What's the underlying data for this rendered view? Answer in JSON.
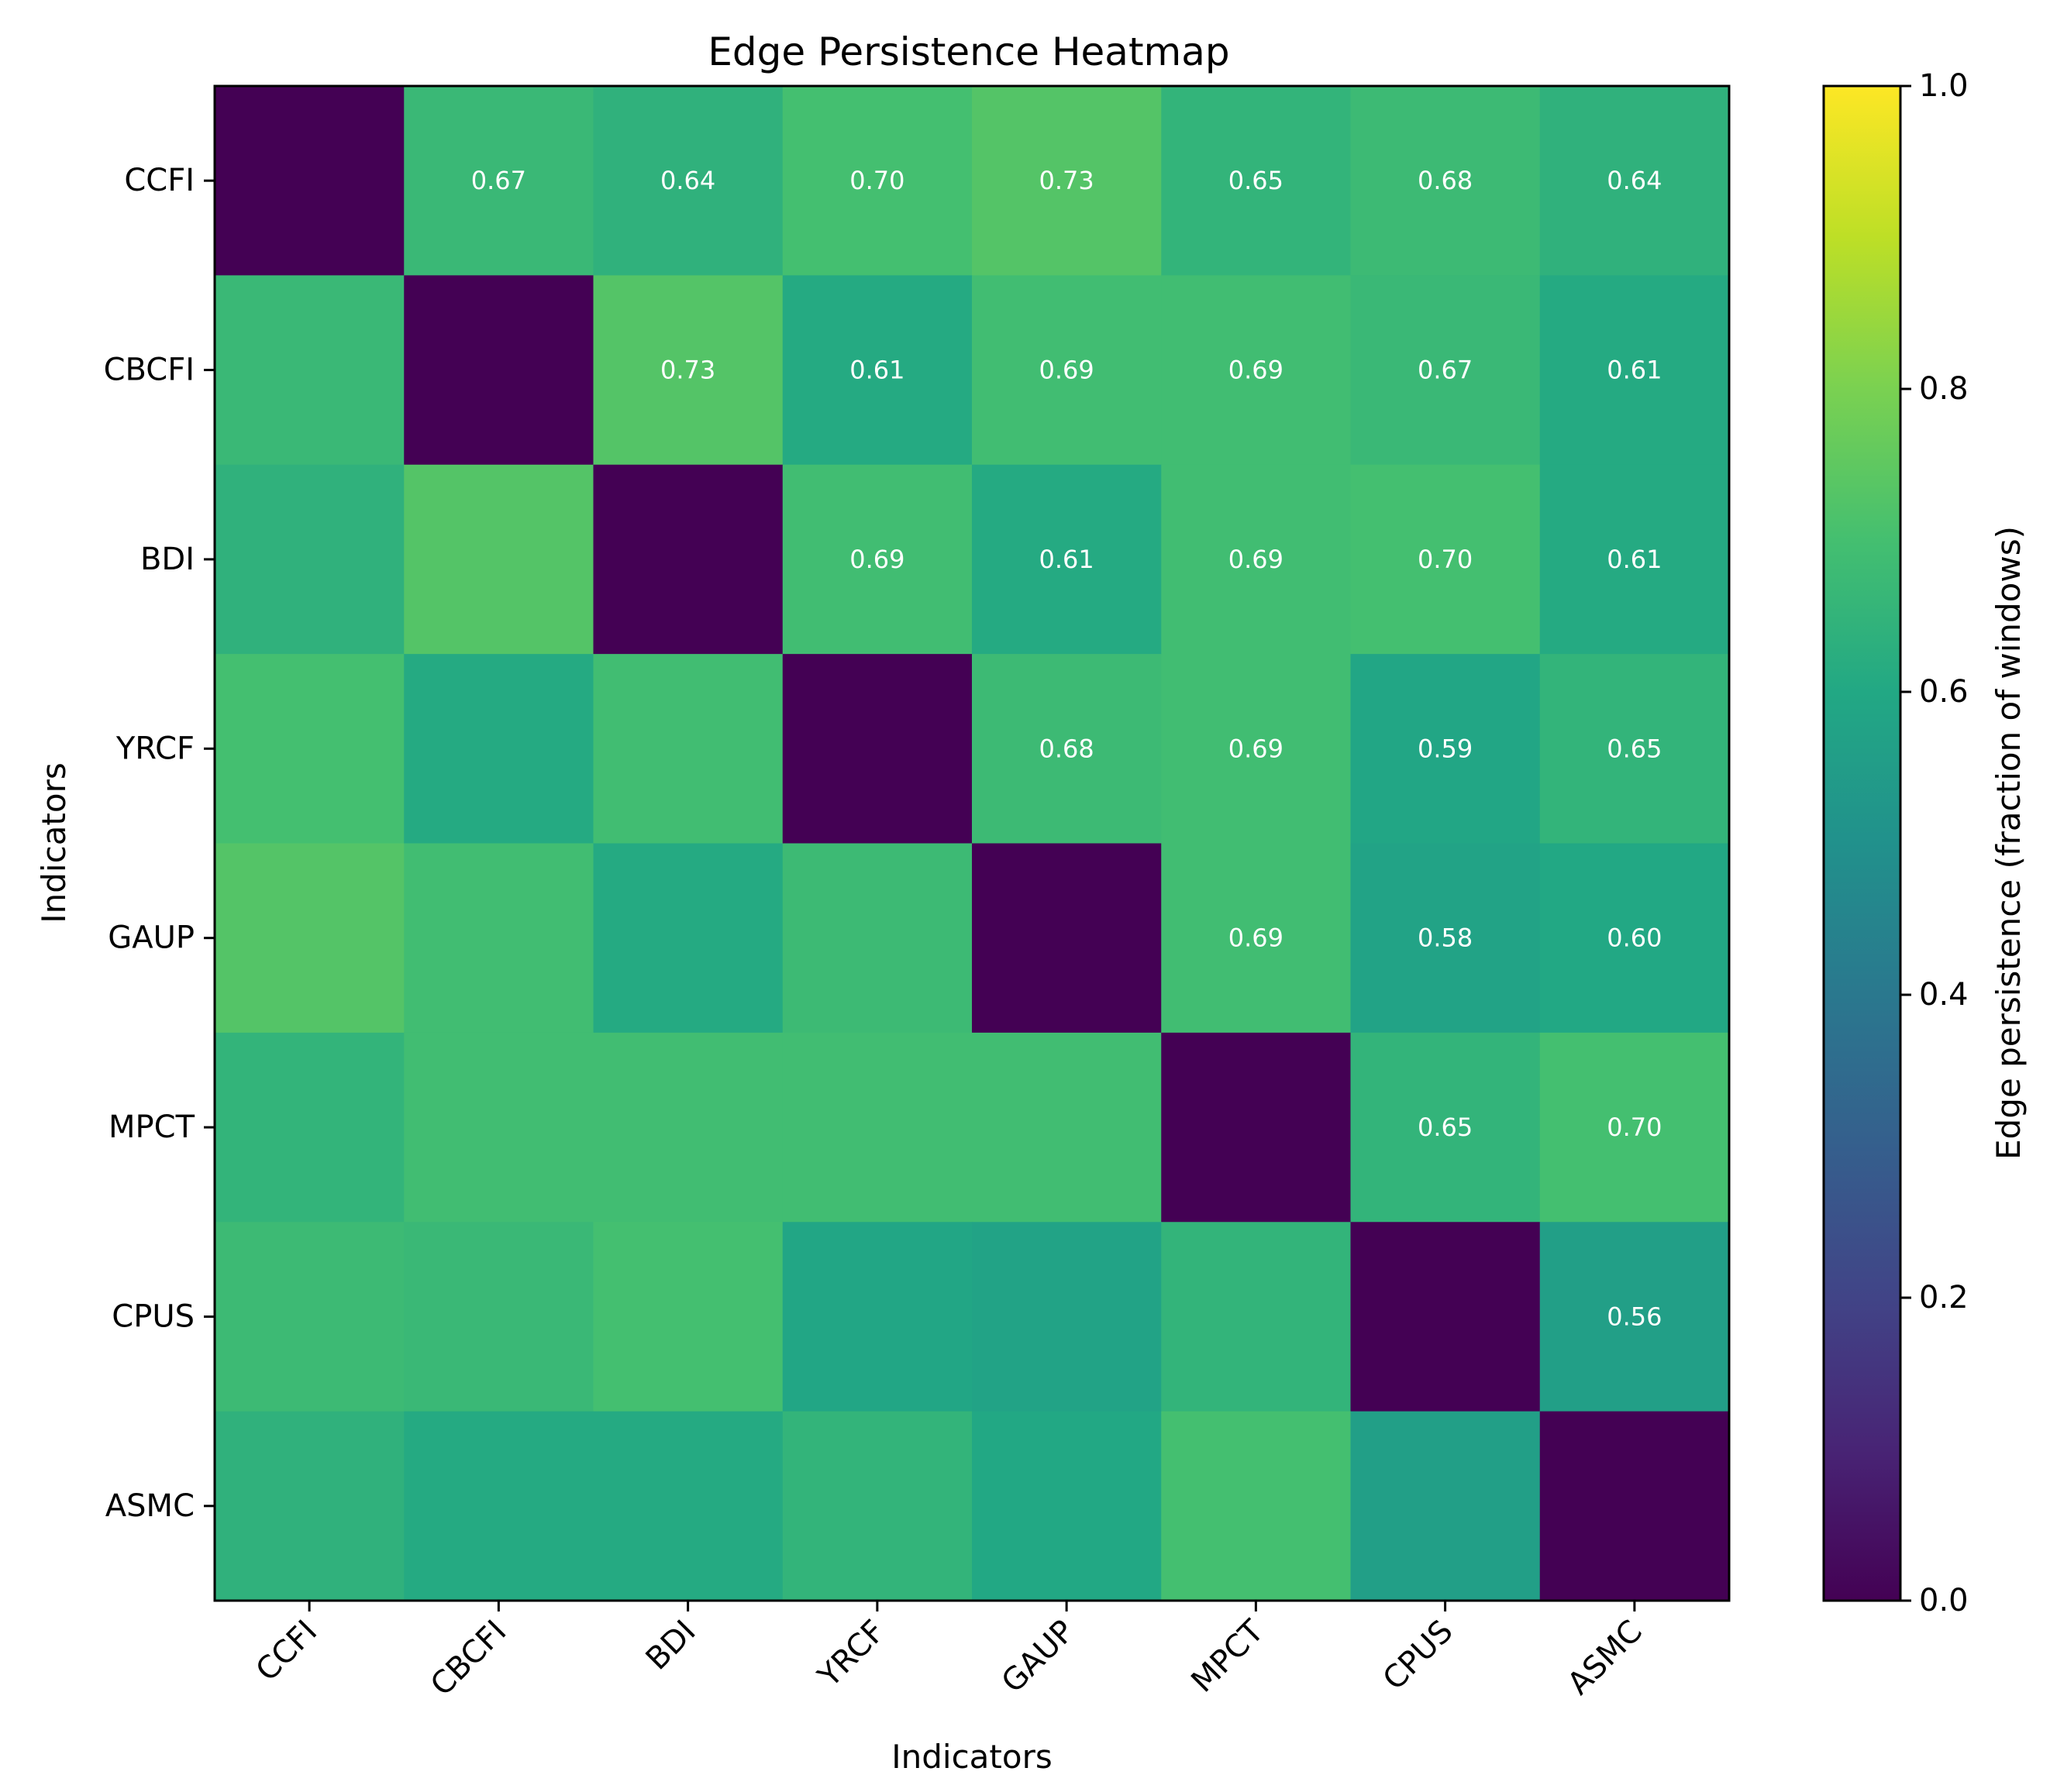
{
  "chart_data": {
    "type": "heatmap",
    "title": "Edge Persistence Heatmap",
    "xlabel": "Indicators",
    "ylabel": "Indicators",
    "x_categories": [
      "CCFI",
      "CBCFI",
      "BDI",
      "YRCF",
      "GAUP",
      "MPCT",
      "CPUS",
      "ASMC"
    ],
    "y_categories": [
      "CCFI",
      "CBCFI",
      "BDI",
      "YRCF",
      "GAUP",
      "MPCT",
      "CPUS",
      "ASMC"
    ],
    "values": [
      [
        0.0,
        0.67,
        0.64,
        0.7,
        0.73,
        0.65,
        0.68,
        0.64
      ],
      [
        0.67,
        0.0,
        0.73,
        0.61,
        0.69,
        0.69,
        0.67,
        0.61
      ],
      [
        0.64,
        0.73,
        0.0,
        0.69,
        0.61,
        0.69,
        0.7,
        0.61
      ],
      [
        0.7,
        0.61,
        0.69,
        0.0,
        0.68,
        0.69,
        0.59,
        0.65
      ],
      [
        0.73,
        0.69,
        0.61,
        0.68,
        0.0,
        0.69,
        0.58,
        0.6
      ],
      [
        0.65,
        0.69,
        0.69,
        0.69,
        0.69,
        0.0,
        0.65,
        0.7
      ],
      [
        0.68,
        0.67,
        0.7,
        0.59,
        0.58,
        0.65,
        0.0,
        0.56
      ],
      [
        0.64,
        0.61,
        0.61,
        0.65,
        0.6,
        0.7,
        0.56,
        0.0
      ]
    ],
    "annotations": [
      {
        "row": 0,
        "col": 1,
        "text": "0.67"
      },
      {
        "row": 0,
        "col": 2,
        "text": "0.64"
      },
      {
        "row": 0,
        "col": 3,
        "text": "0.70"
      },
      {
        "row": 0,
        "col": 4,
        "text": "0.73"
      },
      {
        "row": 0,
        "col": 5,
        "text": "0.65"
      },
      {
        "row": 0,
        "col": 6,
        "text": "0.68"
      },
      {
        "row": 0,
        "col": 7,
        "text": "0.64"
      },
      {
        "row": 1,
        "col": 2,
        "text": "0.73"
      },
      {
        "row": 1,
        "col": 3,
        "text": "0.61"
      },
      {
        "row": 1,
        "col": 4,
        "text": "0.69"
      },
      {
        "row": 1,
        "col": 5,
        "text": "0.69"
      },
      {
        "row": 1,
        "col": 6,
        "text": "0.67"
      },
      {
        "row": 1,
        "col": 7,
        "text": "0.61"
      },
      {
        "row": 2,
        "col": 3,
        "text": "0.69"
      },
      {
        "row": 2,
        "col": 4,
        "text": "0.61"
      },
      {
        "row": 2,
        "col": 5,
        "text": "0.69"
      },
      {
        "row": 2,
        "col": 6,
        "text": "0.70"
      },
      {
        "row": 2,
        "col": 7,
        "text": "0.61"
      },
      {
        "row": 3,
        "col": 4,
        "text": "0.68"
      },
      {
        "row": 3,
        "col": 5,
        "text": "0.69"
      },
      {
        "row": 3,
        "col": 6,
        "text": "0.59"
      },
      {
        "row": 3,
        "col": 7,
        "text": "0.65"
      },
      {
        "row": 4,
        "col": 5,
        "text": "0.69"
      },
      {
        "row": 4,
        "col": 6,
        "text": "0.58"
      },
      {
        "row": 4,
        "col": 7,
        "text": "0.60"
      },
      {
        "row": 5,
        "col": 6,
        "text": "0.65"
      },
      {
        "row": 5,
        "col": 7,
        "text": "0.70"
      },
      {
        "row": 6,
        "col": 7,
        "text": "0.56"
      }
    ],
    "colorbar": {
      "label": "Edge persistence (fraction of windows)",
      "range": [
        0.0,
        1.0
      ],
      "ticks": [
        0.0,
        0.2,
        0.4,
        0.6,
        0.8,
        1.0
      ],
      "tick_labels": [
        "0.0",
        "0.2",
        "0.4",
        "0.6",
        "0.8",
        "1.0"
      ],
      "colormap": "viridis"
    },
    "annotation_color": "#ffffff",
    "axis_color": "#000000"
  }
}
